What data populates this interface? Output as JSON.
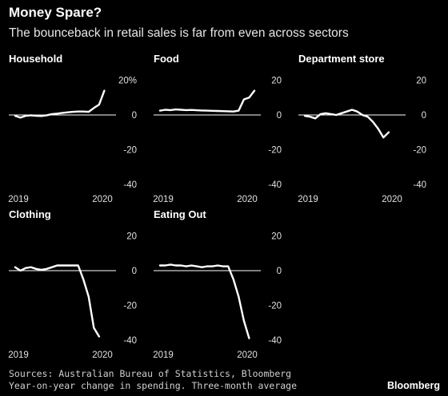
{
  "title": "Money Spare?",
  "subtitle": "The bounceback in retail sales is far from even across sectors",
  "source": "Sources: Australian Bureau of Statistics, Bloomberg",
  "note": "Year-on-year change in spending. Three-month average",
  "brand": "Bloomberg",
  "colors": {
    "background": "#000000",
    "line": "#ffffff",
    "zero_line": "#ffffff",
    "text": "#ffffff"
  },
  "chart_data": [
    {
      "type": "line",
      "title": "Household",
      "x_ticks": [
        "2019",
        "2020"
      ],
      "y_ticks": [
        "20%",
        "0",
        "-20",
        "-40"
      ],
      "ylim": [
        -40,
        20
      ],
      "series": [
        {
          "x": [
            0,
            1,
            2,
            3,
            4,
            5,
            6,
            7,
            8,
            9,
            10,
            11,
            12,
            13,
            14,
            15,
            16,
            17,
            18
          ],
          "values": [
            -0.5,
            -1.5,
            -0.5,
            -0.2,
            -0.5,
            -0.6,
            -0.2,
            0.5,
            0.8,
            1.2,
            1.5,
            1.8,
            2.0,
            2.0,
            1.8,
            4.0,
            6.0,
            14.0,
            null
          ]
        }
      ]
    },
    {
      "type": "line",
      "title": "Food",
      "x_ticks": [
        "2019",
        "2020"
      ],
      "y_ticks": [
        "20",
        "0",
        "-20",
        "-40"
      ],
      "ylim": [
        -40,
        20
      ],
      "series": [
        {
          "x": [
            0,
            1,
            2,
            3,
            4,
            5,
            6,
            7,
            8,
            9,
            10,
            11,
            12,
            13,
            14,
            15,
            16,
            17,
            18
          ],
          "values": [
            2.5,
            3.0,
            2.8,
            3.2,
            3.0,
            2.8,
            2.9,
            2.7,
            2.6,
            2.5,
            2.4,
            2.3,
            2.2,
            2.1,
            2.0,
            2.5,
            9.0,
            10.0,
            14.0
          ]
        }
      ]
    },
    {
      "type": "line",
      "title": "Department store",
      "x_ticks": [
        "2019",
        "2020"
      ],
      "y_ticks": [
        "20",
        "0",
        "-20",
        "-40"
      ],
      "ylim": [
        -40,
        20
      ],
      "series": [
        {
          "x": [
            0,
            1,
            2,
            3,
            4,
            5,
            6,
            7,
            8,
            9,
            10,
            11,
            12,
            13,
            14,
            15,
            16,
            17,
            18
          ],
          "values": [
            -0.5,
            -1.0,
            -2.0,
            0.5,
            1.0,
            0.5,
            0.0,
            1.0,
            2.0,
            3.0,
            2.0,
            0.0,
            -1.0,
            -4.0,
            -8.0,
            -13.0,
            -10.0,
            null,
            null
          ]
        }
      ]
    },
    {
      "type": "line",
      "title": "Clothing",
      "x_ticks": [
        "2019",
        "2020"
      ],
      "y_ticks": [
        "20",
        "0",
        "-20",
        "-40"
      ],
      "ylim": [
        -40,
        20
      ],
      "series": [
        {
          "x": [
            0,
            1,
            2,
            3,
            4,
            5,
            6,
            7,
            8,
            9,
            10,
            11,
            12,
            13,
            14,
            15,
            16,
            17,
            18
          ],
          "values": [
            2.0,
            0.0,
            1.5,
            2.0,
            1.0,
            0.5,
            1.0,
            2.0,
            3.0,
            3.0,
            3.0,
            3.0,
            3.0,
            -5.0,
            -15.0,
            -33.0,
            -38.0,
            null,
            null
          ]
        }
      ]
    },
    {
      "type": "line",
      "title": "Eating Out",
      "x_ticks": [
        "2019",
        "2020"
      ],
      "y_ticks": [
        "20",
        "0",
        "-20",
        "-40"
      ],
      "ylim": [
        -40,
        20
      ],
      "series": [
        {
          "x": [
            0,
            1,
            2,
            3,
            4,
            5,
            6,
            7,
            8,
            9,
            10,
            11,
            12,
            13,
            14,
            15,
            16,
            17,
            18
          ],
          "values": [
            3.0,
            3.0,
            3.5,
            3.0,
            3.0,
            2.5,
            3.0,
            2.5,
            2.0,
            2.5,
            2.5,
            3.0,
            2.5,
            2.5,
            -5.0,
            -15.0,
            -29.0,
            -39.0,
            null
          ]
        }
      ]
    }
  ]
}
